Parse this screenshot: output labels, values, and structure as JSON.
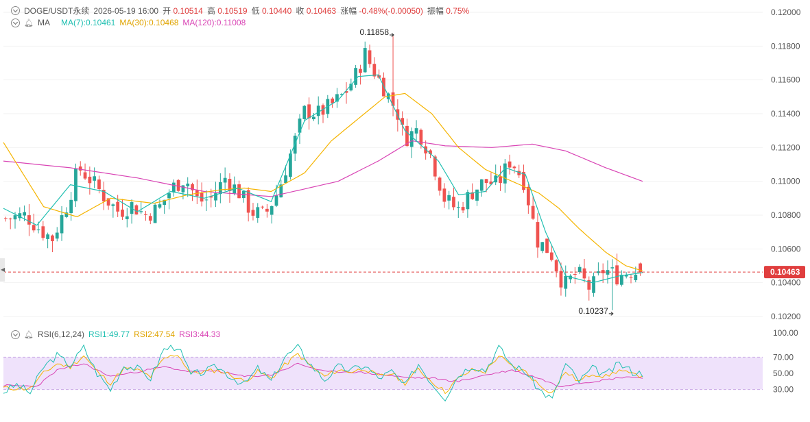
{
  "header": {
    "symbol": "DOGE/USDT永续",
    "datetime": "2026-05-19 16:00",
    "open_label": "开",
    "open": "0.10514",
    "high_label": "高",
    "high": "0.10519",
    "low_label": "低",
    "low": "0.10440",
    "close_label": "收",
    "close": "0.10463",
    "change_label": "涨幅",
    "change": "-0.48%(-0.00050)",
    "amp_label": "振幅",
    "amp": "0.75%"
  },
  "ma_legend": {
    "name": "MA",
    "ma7": "MA(7):0.10461",
    "ma30": "MA(30):0.10468",
    "ma120": "MA(120):0.11008"
  },
  "rsi_legend": {
    "name": "RSI(6,12,24)",
    "rsi1": "RSI1:49.77",
    "rsi2": "RSI2:47.54",
    "rsi3": "RSI3:44.33"
  },
  "colors": {
    "up": "#26a69a",
    "down": "#ef5350",
    "ma7": "#1fbfb1",
    "ma30": "#f5b400",
    "ma120": "#d945b5",
    "rsi1": "#1fbfb1",
    "rsi2": "#f5b400",
    "rsi3": "#d945b5",
    "rsi_band": "#efe2fb",
    "price_tag": "#e03e3e"
  },
  "chart_data": {
    "type": "candlestick",
    "price_axis": {
      "min": 0.102,
      "max": 0.12,
      "ticks": [
        "0.12000",
        "0.11800",
        "0.11600",
        "0.11400",
        "0.11200",
        "0.11000",
        "0.10800",
        "0.10600",
        "0.10400",
        "0.10200"
      ]
    },
    "last_price": "0.10463",
    "annotations": [
      {
        "text": "0.11858",
        "price": 0.11858,
        "at_candle": 83
      },
      {
        "text": "0.10237",
        "price": 0.10237,
        "at_candle": 130
      }
    ],
    "rsi_axis": {
      "min": 0,
      "max": 100,
      "ticks": [
        "100.00",
        "70.00",
        "50.00",
        "30.00"
      ],
      "band": [
        30,
        70
      ]
    },
    "candle_count": 137,
    "close_path": [
      [
        0,
        0.1078
      ],
      [
        6,
        0.108
      ],
      [
        10,
        0.1072
      ],
      [
        14,
        0.1066
      ],
      [
        18,
        0.1084
      ],
      [
        22,
        0.1108
      ],
      [
        26,
        0.11
      ],
      [
        30,
        0.109
      ],
      [
        34,
        0.1082
      ],
      [
        38,
        0.1086
      ],
      [
        42,
        0.108
      ],
      [
        46,
        0.1084
      ],
      [
        50,
        0.1096
      ],
      [
        54,
        0.1102
      ],
      [
        58,
        0.1088
      ],
      [
        62,
        0.109
      ],
      [
        66,
        0.1102
      ],
      [
        70,
        0.1094
      ],
      [
        74,
        0.1082
      ],
      [
        78,
        0.108
      ],
      [
        82,
        0.1094
      ],
      [
        86,
        0.1118
      ],
      [
        90,
        0.1142
      ],
      [
        94,
        0.114
      ],
      [
        98,
        0.1145
      ],
      [
        102,
        0.1152
      ],
      [
        106,
        0.1165
      ],
      [
        108,
        0.1176
      ],
      [
        110,
        0.1168
      ],
      [
        114,
        0.1155
      ],
      [
        118,
        0.114
      ],
      [
        120,
        0.1125
      ],
      [
        124,
        0.1131
      ],
      [
        128,
        0.1115
      ],
      [
        132,
        0.109
      ],
      [
        136,
        0.1083
      ],
      [
        140,
        0.1093
      ],
      [
        144,
        0.11
      ],
      [
        148,
        0.1098
      ],
      [
        152,
        0.1113
      ],
      [
        156,
        0.11
      ],
      [
        160,
        0.1065
      ],
      [
        164,
        0.1058
      ],
      [
        168,
        0.1038
      ],
      [
        172,
        0.1046
      ],
      [
        176,
        0.1036
      ],
      [
        180,
        0.1048
      ],
      [
        184,
        0.1044
      ],
      [
        188,
        0.1047
      ],
      [
        191,
        0.1046
      ]
    ],
    "ma7_path": [
      [
        0,
        0.1084
      ],
      [
        10,
        0.1074
      ],
      [
        20,
        0.1098
      ],
      [
        30,
        0.1094
      ],
      [
        40,
        0.1082
      ],
      [
        50,
        0.1094
      ],
      [
        60,
        0.109
      ],
      [
        70,
        0.1096
      ],
      [
        80,
        0.1088
      ],
      [
        90,
        0.1136
      ],
      [
        100,
        0.1148
      ],
      [
        106,
        0.1162
      ],
      [
        112,
        0.1163
      ],
      [
        120,
        0.113
      ],
      [
        130,
        0.1112
      ],
      [
        136,
        0.1092
      ],
      [
        144,
        0.1094
      ],
      [
        150,
        0.1108
      ],
      [
        156,
        0.1104
      ],
      [
        162,
        0.107
      ],
      [
        168,
        0.1044
      ],
      [
        176,
        0.104
      ],
      [
        184,
        0.1044
      ],
      [
        191,
        0.1046
      ]
    ],
    "ma30_path": [
      [
        0,
        0.1123
      ],
      [
        12,
        0.1085
      ],
      [
        22,
        0.1079
      ],
      [
        32,
        0.109
      ],
      [
        45,
        0.1087
      ],
      [
        55,
        0.1092
      ],
      [
        65,
        0.1095
      ],
      [
        72,
        0.1096
      ],
      [
        80,
        0.1094
      ],
      [
        90,
        0.1105
      ],
      [
        98,
        0.1124
      ],
      [
        106,
        0.1137
      ],
      [
        114,
        0.115
      ],
      [
        120,
        0.1152
      ],
      [
        128,
        0.114
      ],
      [
        136,
        0.112
      ],
      [
        144,
        0.1107
      ],
      [
        152,
        0.11
      ],
      [
        160,
        0.1093
      ],
      [
        166,
        0.1084
      ],
      [
        172,
        0.1072
      ],
      [
        180,
        0.1058
      ],
      [
        186,
        0.105
      ],
      [
        191,
        0.1047
      ]
    ],
    "ma120_path": [
      [
        0,
        0.1112
      ],
      [
        20,
        0.1108
      ],
      [
        40,
        0.1102
      ],
      [
        60,
        0.1094
      ],
      [
        80,
        0.1091
      ],
      [
        100,
        0.11
      ],
      [
        112,
        0.1112
      ],
      [
        122,
        0.1124
      ],
      [
        132,
        0.1121
      ],
      [
        146,
        0.112
      ],
      [
        158,
        0.1122
      ],
      [
        168,
        0.1118
      ],
      [
        180,
        0.1108
      ],
      [
        191,
        0.11
      ]
    ],
    "rsi1_path": [
      [
        0,
        27
      ],
      [
        4,
        36
      ],
      [
        8,
        26
      ],
      [
        12,
        58
      ],
      [
        16,
        72
      ],
      [
        20,
        60
      ],
      [
        24,
        82
      ],
      [
        28,
        50
      ],
      [
        32,
        30
      ],
      [
        36,
        60
      ],
      [
        40,
        56
      ],
      [
        44,
        44
      ],
      [
        48,
        80
      ],
      [
        52,
        84
      ],
      [
        56,
        48
      ],
      [
        60,
        52
      ],
      [
        64,
        58
      ],
      [
        68,
        46
      ],
      [
        72,
        36
      ],
      [
        76,
        56
      ],
      [
        80,
        40
      ],
      [
        84,
        70
      ],
      [
        88,
        82
      ],
      [
        92,
        60
      ],
      [
        96,
        42
      ],
      [
        100,
        58
      ],
      [
        104,
        54
      ],
      [
        108,
        60
      ],
      [
        112,
        44
      ],
      [
        116,
        52
      ],
      [
        120,
        34
      ],
      [
        124,
        62
      ],
      [
        128,
        38
      ],
      [
        132,
        20
      ],
      [
        136,
        48
      ],
      [
        140,
        60
      ],
      [
        144,
        54
      ],
      [
        148,
        82
      ],
      [
        152,
        60
      ],
      [
        156,
        52
      ],
      [
        160,
        30
      ],
      [
        164,
        18
      ],
      [
        168,
        62
      ],
      [
        172,
        40
      ],
      [
        176,
        56
      ],
      [
        180,
        48
      ],
      [
        184,
        62
      ],
      [
        188,
        52
      ],
      [
        191,
        50
      ]
    ],
    "rsi2_path": [
      [
        0,
        32
      ],
      [
        8,
        31
      ],
      [
        12,
        50
      ],
      [
        16,
        62
      ],
      [
        20,
        58
      ],
      [
        24,
        72
      ],
      [
        28,
        52
      ],
      [
        32,
        38
      ],
      [
        36,
        56
      ],
      [
        40,
        54
      ],
      [
        44,
        46
      ],
      [
        48,
        68
      ],
      [
        52,
        74
      ],
      [
        56,
        50
      ],
      [
        60,
        52
      ],
      [
        64,
        54
      ],
      [
        68,
        48
      ],
      [
        72,
        40
      ],
      [
        76,
        52
      ],
      [
        80,
        44
      ],
      [
        84,
        60
      ],
      [
        88,
        74
      ],
      [
        92,
        58
      ],
      [
        96,
        46
      ],
      [
        100,
        54
      ],
      [
        104,
        52
      ],
      [
        108,
        56
      ],
      [
        112,
        46
      ],
      [
        116,
        50
      ],
      [
        120,
        38
      ],
      [
        124,
        55
      ],
      [
        128,
        40
      ],
      [
        132,
        27
      ],
      [
        136,
        44
      ],
      [
        140,
        54
      ],
      [
        144,
        52
      ],
      [
        148,
        72
      ],
      [
        152,
        58
      ],
      [
        156,
        52
      ],
      [
        160,
        36
      ],
      [
        164,
        26
      ],
      [
        168,
        52
      ],
      [
        172,
        40
      ],
      [
        176,
        50
      ],
      [
        180,
        46
      ],
      [
        184,
        54
      ],
      [
        188,
        48
      ],
      [
        191,
        47.5
      ]
    ],
    "rsi3_path": [
      [
        0,
        35
      ],
      [
        10,
        34
      ],
      [
        16,
        54
      ],
      [
        24,
        62
      ],
      [
        32,
        46
      ],
      [
        40,
        52
      ],
      [
        48,
        58
      ],
      [
        56,
        52
      ],
      [
        64,
        53
      ],
      [
        72,
        46
      ],
      [
        80,
        48
      ],
      [
        88,
        62
      ],
      [
        96,
        52
      ],
      [
        104,
        52
      ],
      [
        112,
        49
      ],
      [
        120,
        45
      ],
      [
        128,
        44
      ],
      [
        136,
        40
      ],
      [
        144,
        48
      ],
      [
        152,
        54
      ],
      [
        160,
        44
      ],
      [
        166,
        34
      ],
      [
        172,
        38
      ],
      [
        180,
        42
      ],
      [
        186,
        46
      ],
      [
        191,
        44.3
      ]
    ]
  }
}
